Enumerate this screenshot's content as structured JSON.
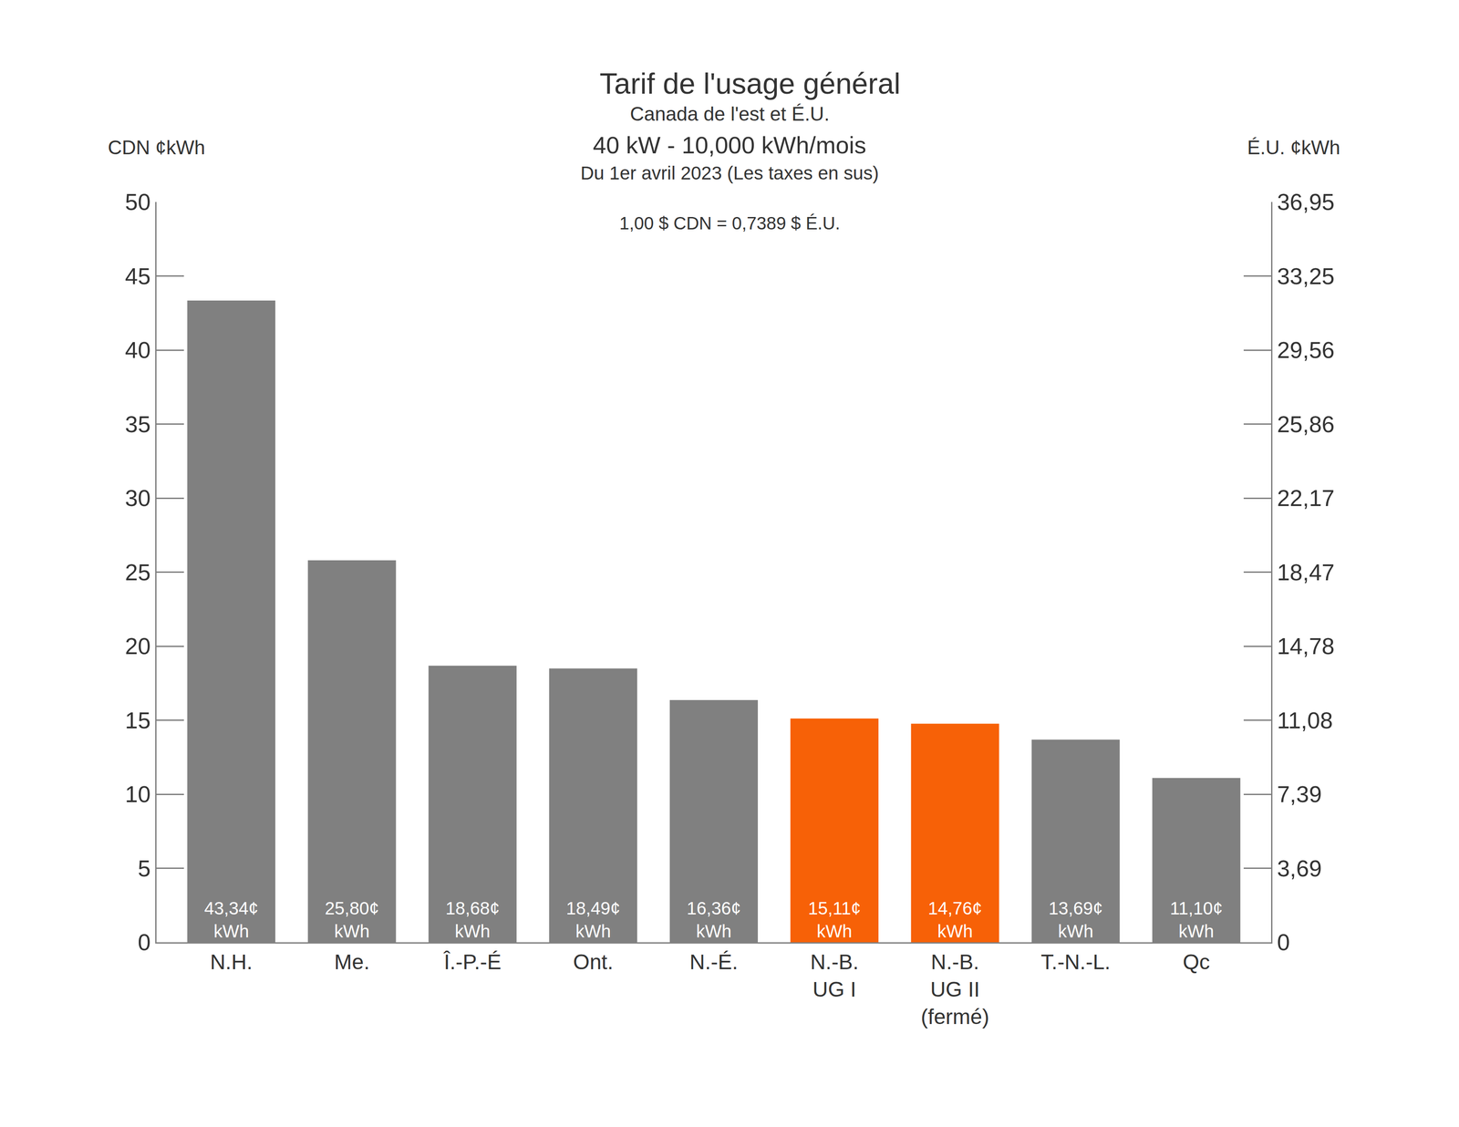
{
  "chart_data": {
    "type": "bar",
    "title": "Tarif de l'usage général",
    "subtitle": [
      "Canada de l'est et É.U.",
      "40 kW - 10,000 kWh/mois",
      "Du 1er avril 2023 (Les taxes en sus)"
    ],
    "annotations": [
      "1,00 $ CDN = 0,7389 $ É.U."
    ],
    "ylabel": "CDN ¢kWh",
    "y2label": "É.U. ¢kWh",
    "categories": [
      "N.H.",
      "Me.",
      "Î.-P.-É",
      "Ont.",
      "N.-É.",
      "N.-B.\nUG I",
      "N.-B.\nUG II\n(fermé)",
      "T.-N.-L.",
      "Qc"
    ],
    "values": [
      43.34,
      25.8,
      18.68,
      18.49,
      16.36,
      15.11,
      14.76,
      13.69,
      11.1
    ],
    "value_labels": [
      "43,34¢\nkWh",
      "25,80¢\nkWh",
      "18,68¢\nkWh",
      "18,49¢\nkWh",
      "16,36¢\nkWh",
      "15,11¢\nkWh",
      "14,76¢\nkWh",
      "13,69¢\nkWh",
      "11,10¢\nkWh"
    ],
    "colors": [
      "#808080",
      "#808080",
      "#808080",
      "#808080",
      "#808080",
      "#f76107",
      "#f76107",
      "#808080",
      "#808080"
    ],
    "data_labels": true,
    "grid": false,
    "ylim": [
      0,
      50
    ],
    "yticks": [
      0,
      5,
      10,
      15,
      20,
      25,
      30,
      35,
      40,
      45,
      50
    ],
    "y2lim": [
      0,
      36.95
    ],
    "y2ticks": [
      {
        "value": 0,
        "label": "0"
      },
      {
        "value": 3.69,
        "label": "3,69"
      },
      {
        "value": 7.39,
        "label": "7,39"
      },
      {
        "value": 11.08,
        "label": "11,08"
      },
      {
        "value": 14.78,
        "label": "14,78"
      },
      {
        "value": 18.47,
        "label": "18,47"
      },
      {
        "value": 22.17,
        "label": "22,17"
      },
      {
        "value": 25.86,
        "label": "25,86"
      },
      {
        "value": 29.56,
        "label": "29,56"
      },
      {
        "value": 33.25,
        "label": "33,25"
      },
      {
        "value": 36.95,
        "label": "36,95"
      }
    ]
  }
}
